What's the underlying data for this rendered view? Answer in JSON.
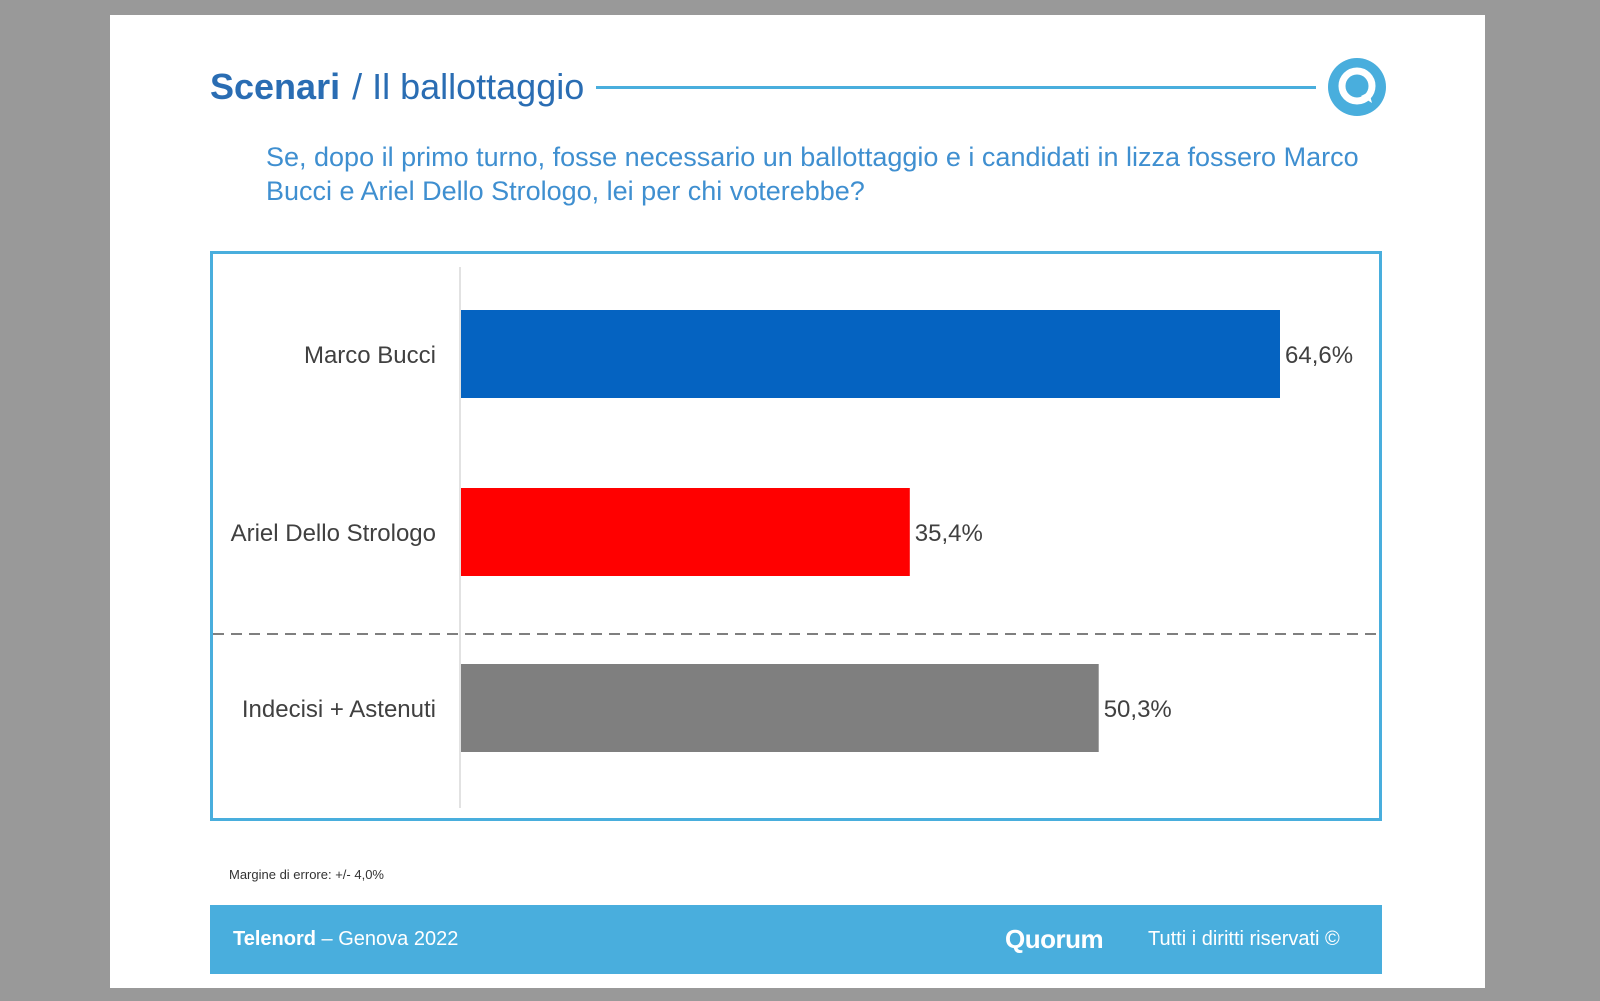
{
  "slide": {
    "title_strong": "Scenari",
    "title_rest": "/ Il ballottaggio",
    "question": "Se, dopo il primo turno, fosse necessario un ballottaggio e i candidati in lizza fossero Marco Bucci e Ariel Dello Strologo, lei per chi voterebbe?",
    "margin_note": "Margine di errore: +/- 4,0%",
    "logo_icon": "quorum-q-logo-icon"
  },
  "footer": {
    "client": "Telenord",
    "separator": "–",
    "location": "Genova 2022",
    "brand": "Quorum",
    "rights": "Tutti i diritti riservati ©"
  },
  "colors": {
    "accent": "#49aedd",
    "title": "#2a6db3",
    "question": "#3f8fd0"
  },
  "chart_data": {
    "type": "bar",
    "orientation": "horizontal",
    "categories": [
      "Marco Bucci",
      "Ariel Dello Strologo",
      "Indecisi + Astenuti"
    ],
    "values": [
      64.6,
      35.4,
      50.3
    ],
    "value_labels": [
      "64,6%",
      "35,4%",
      "50,3%"
    ],
    "colors": [
      "#0563c1",
      "#ff0000",
      "#7f7f7f"
    ],
    "xlim": [
      0,
      64.6
    ],
    "separator_after_index": 1,
    "grid": false,
    "legend": "none"
  }
}
